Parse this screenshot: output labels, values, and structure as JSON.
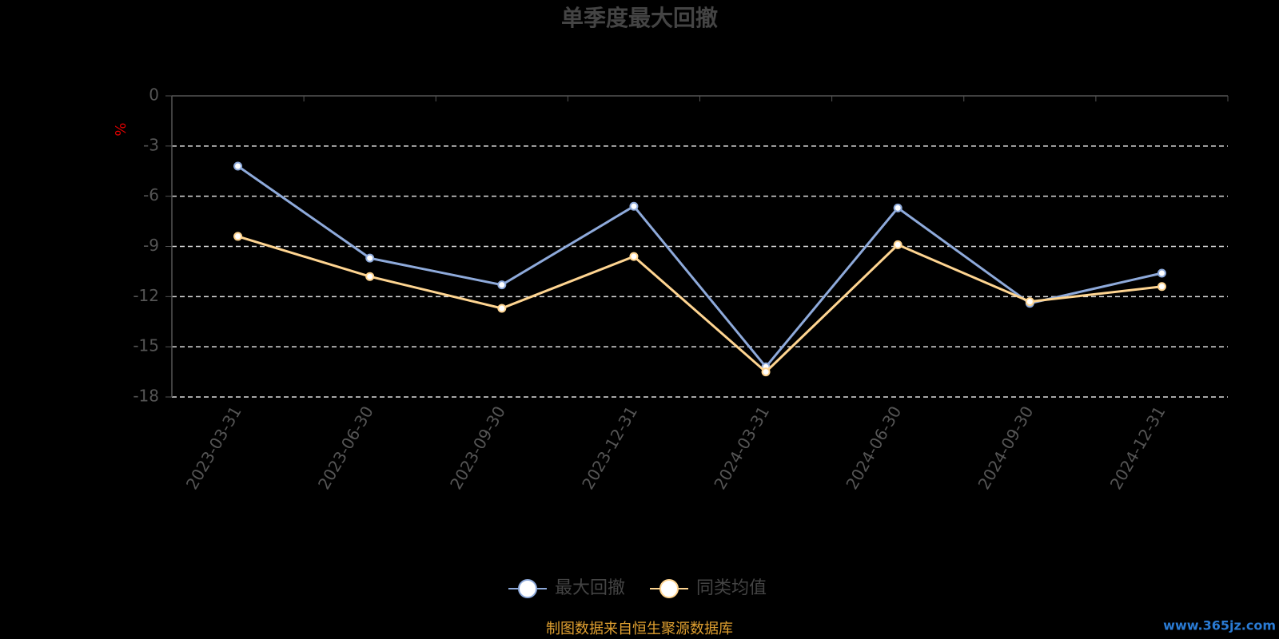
{
  "chart_data": {
    "type": "line",
    "title": "单季度最大回撤",
    "y_label": "%",
    "categories": [
      "2023-03-31",
      "2023-06-30",
      "2023-09-30",
      "2023-12-31",
      "2024-03-31",
      "2024-06-30",
      "2024-09-30",
      "2024-12-31"
    ],
    "series": [
      {
        "name": "最大回撤",
        "color": "#8eaadb",
        "values": [
          -4.2,
          -9.7,
          -11.3,
          -6.6,
          -16.2,
          -6.7,
          -12.4,
          -10.6
        ]
      },
      {
        "name": "同类均值",
        "color": "#ffd591",
        "values": [
          -8.4,
          -10.8,
          -12.7,
          -9.6,
          -16.5,
          -8.9,
          -12.3,
          -11.4
        ]
      }
    ],
    "ylim": [
      -18,
      0
    ],
    "yticks": [
      0,
      -3,
      -6,
      -9,
      -12,
      -15,
      -18
    ],
    "grid": true,
    "source": "制图数据来自恒生聚源数据库",
    "watermark": "www.365jz.com"
  }
}
